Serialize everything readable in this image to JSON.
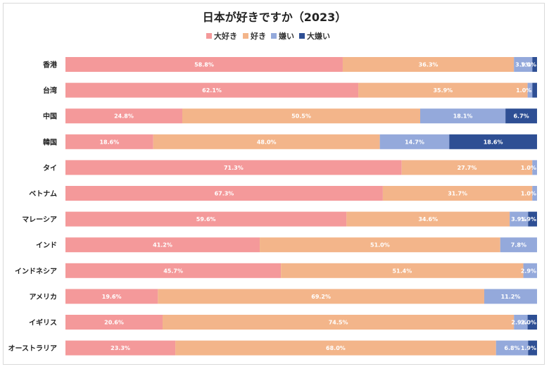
{
  "chart_data": {
    "type": "bar",
    "orientation": "horizontal",
    "stacked": "percent",
    "title": "日本が好きですか（2023）",
    "legend_position": "top",
    "categories": [
      "香港",
      "台湾",
      "中国",
      "韓国",
      "タイ",
      "ベトナム",
      "マレーシア",
      "インド",
      "インドネシア",
      "アメリカ",
      "イギリス",
      "オーストラリア"
    ],
    "series": [
      {
        "name": "大好き",
        "color": "#f4999a",
        "values": [
          58.8,
          62.1,
          24.8,
          18.6,
          71.3,
          67.3,
          59.6,
          41.2,
          45.7,
          19.6,
          20.6,
          23.3
        ],
        "labels": [
          "58.8%",
          "62.1%",
          "24.8%",
          "18.6%",
          "71.3%",
          "67.3%",
          "59.6%",
          "41.2%",
          "45.7%",
          "19.6%",
          "20.6%",
          "23.3%"
        ]
      },
      {
        "name": "好き",
        "color": "#f3b58a",
        "values": [
          36.3,
          35.9,
          50.5,
          48.0,
          27.7,
          31.7,
          34.6,
          51.0,
          51.4,
          69.2,
          74.5,
          68.0
        ],
        "labels": [
          "36.3%",
          "35.9%",
          "50.5%",
          "48.0%",
          "27.7%",
          "31.7%",
          "34.6%",
          "51.0%",
          "51.4%",
          "69.2%",
          "74.5%",
          "68.0%"
        ]
      },
      {
        "name": "嫌い",
        "color": "#94a9db",
        "values": [
          3.9,
          1.0,
          18.1,
          14.7,
          1.0,
          1.0,
          3.9,
          7.8,
          2.9,
          11.2,
          2.9,
          6.8
        ],
        "labels": [
          "3.9%",
          "1.0%",
          "18.1%",
          "14.7%",
          "1.0%",
          "1.0%",
          "3.9%",
          "7.8%",
          "2.9%",
          "11.2%",
          "2.9%",
          "6.8%"
        ]
      },
      {
        "name": "大嫌い",
        "color": "#2e4f94",
        "values": [
          1.0,
          1.0,
          6.7,
          18.6,
          0,
          0,
          1.9,
          0,
          0,
          0,
          2.0,
          1.9
        ],
        "labels": [
          "1.0%",
          "",
          "6.7%",
          "18.6%",
          "",
          "",
          "1.9%",
          "",
          "",
          "",
          "2.0%",
          "1.9%"
        ]
      }
    ],
    "xlim": [
      0,
      100
    ],
    "grid": false
  }
}
